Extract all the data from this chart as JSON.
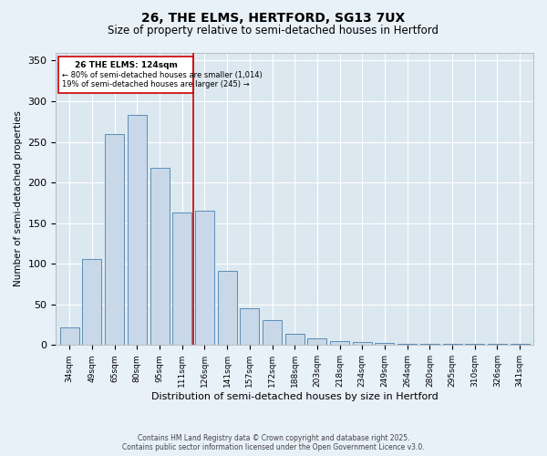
{
  "title": "26, THE ELMS, HERTFORD, SG13 7UX",
  "subtitle": "Size of property relative to semi-detached houses in Hertford",
  "xlabel": "Distribution of semi-detached houses by size in Hertford",
  "ylabel": "Number of semi-detached properties",
  "footer_line1": "Contains HM Land Registry data © Crown copyright and database right 2025.",
  "footer_line2": "Contains public sector information licensed under the Open Government Licence v3.0.",
  "categories": [
    "34sqm",
    "49sqm",
    "65sqm",
    "80sqm",
    "95sqm",
    "111sqm",
    "126sqm",
    "141sqm",
    "157sqm",
    "172sqm",
    "188sqm",
    "203sqm",
    "218sqm",
    "234sqm",
    "249sqm",
    "264sqm",
    "280sqm",
    "295sqm",
    "310sqm",
    "326sqm",
    "341sqm"
  ],
  "values": [
    22,
    106,
    260,
    283,
    218,
    163,
    165,
    91,
    45,
    31,
    14,
    8,
    5,
    4,
    3,
    2,
    2,
    2,
    1,
    1,
    1
  ],
  "bar_color": "#c8d8e8",
  "bar_edge_color": "#5b8db8",
  "vline_x": 6,
  "vline_label": "26 THE ELMS: 124sqm",
  "annotation_line1": "← 80% of semi-detached houses are smaller (1,014)",
  "annotation_line2": "19% of semi-detached houses are larger (245) →",
  "box_color": "#cc0000",
  "ylim": [
    0,
    360
  ],
  "yticks": [
    0,
    50,
    100,
    150,
    200,
    250,
    300,
    350
  ],
  "bg_color": "#e8f0f8",
  "plot_bg_color": "#dce8f0",
  "grid_color": "#ffffff",
  "title_fontsize": 10,
  "subtitle_fontsize": 8.5
}
